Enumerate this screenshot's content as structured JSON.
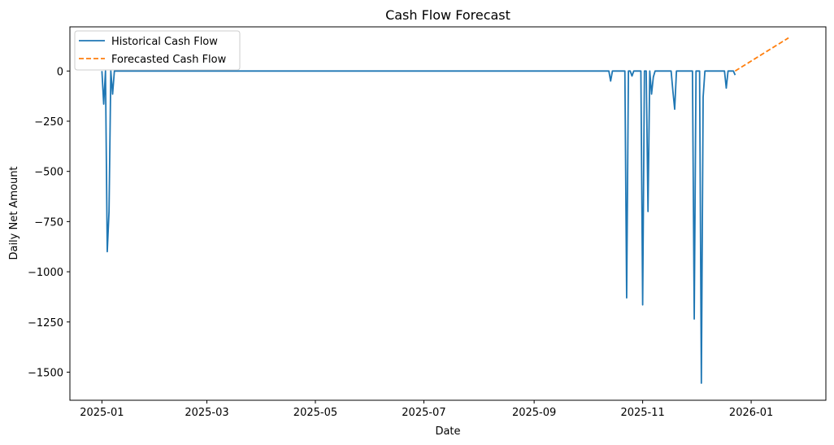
{
  "chart_data": {
    "type": "line",
    "title": "Cash Flow Forecast",
    "xlabel": "Date",
    "ylabel": "Daily Net Amount",
    "xlim": [
      "2024-12-14",
      "2026-02-12"
    ],
    "ylim": [
      -1640,
      220
    ],
    "x_ticks": [
      "2025-01",
      "2025-03",
      "2025-05",
      "2025-07",
      "2025-09",
      "2025-11",
      "2026-01"
    ],
    "x_tick_dates": [
      "2025-01-01",
      "2025-03-01",
      "2025-05-01",
      "2025-07-01",
      "2025-09-01",
      "2025-11-01",
      "2026-01-01"
    ],
    "y_ticks": [
      0,
      -250,
      -500,
      -750,
      -1000,
      -1250,
      -1500
    ],
    "y_tick_labels": [
      "0",
      "−250",
      "−500",
      "−750",
      "−1000",
      "−1250",
      "−1500"
    ],
    "grid": false,
    "legend_position": "top-left",
    "colors": {
      "historical": "#1f77b4",
      "forecast": "#ff7f0e"
    },
    "series": [
      {
        "name": "Historical Cash Flow",
        "style": "solid",
        "points": [
          [
            "2025-01-01",
            0
          ],
          [
            "2025-01-02",
            -165
          ],
          [
            "2025-01-03",
            0
          ],
          [
            "2025-01-04",
            -900
          ],
          [
            "2025-01-05",
            -700
          ],
          [
            "2025-01-06",
            0
          ],
          [
            "2025-01-07",
            -115
          ],
          [
            "2025-01-08",
            0
          ],
          [
            "2025-10-13",
            0
          ],
          [
            "2025-10-14",
            -50
          ],
          [
            "2025-10-15",
            0
          ],
          [
            "2025-10-22",
            0
          ],
          [
            "2025-10-23",
            -1130
          ],
          [
            "2025-10-24",
            0
          ],
          [
            "2025-10-25",
            0
          ],
          [
            "2025-10-26",
            -25
          ],
          [
            "2025-10-27",
            0
          ],
          [
            "2025-10-31",
            0
          ],
          [
            "2025-11-01",
            -1165
          ],
          [
            "2025-11-02",
            0
          ],
          [
            "2025-11-03",
            0
          ],
          [
            "2025-11-04",
            -700
          ],
          [
            "2025-11-05",
            0
          ],
          [
            "2025-11-06",
            -115
          ],
          [
            "2025-11-07",
            -30
          ],
          [
            "2025-11-08",
            0
          ],
          [
            "2025-11-17",
            0
          ],
          [
            "2025-11-18",
            -100
          ],
          [
            "2025-11-19",
            -190
          ],
          [
            "2025-11-20",
            0
          ],
          [
            "2025-11-29",
            0
          ],
          [
            "2025-11-30",
            -1235
          ],
          [
            "2025-12-01",
            0
          ],
          [
            "2025-12-03",
            0
          ],
          [
            "2025-12-04",
            -1555
          ],
          [
            "2025-12-05",
            -130
          ],
          [
            "2025-12-06",
            0
          ],
          [
            "2025-12-17",
            0
          ],
          [
            "2025-12-18",
            -85
          ],
          [
            "2025-12-19",
            0
          ],
          [
            "2025-12-22",
            0
          ],
          [
            "2025-12-23",
            -20
          ]
        ]
      },
      {
        "name": "Forecasted Cash Flow",
        "style": "dashed",
        "points": [
          [
            "2025-12-23",
            0
          ],
          [
            "2026-01-22",
            165
          ]
        ]
      }
    ]
  }
}
